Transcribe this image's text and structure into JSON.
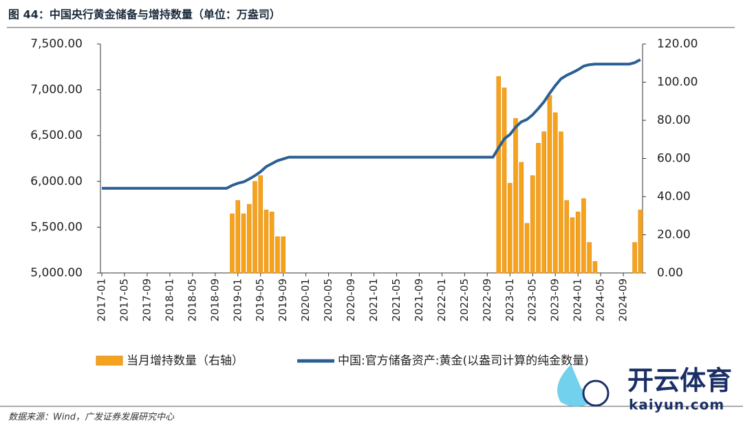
{
  "title": "图 44：中国央行黄金储备与增持数量（单位：万盎司）",
  "source": "数据来源：Wind，广发证券发展研究中心",
  "watermark": {
    "name": "开云体育",
    "site": "kaiyun.com"
  },
  "chart_data": {
    "type": "combo",
    "categories": [
      "2017-01",
      null,
      null,
      null,
      "2017-05",
      null,
      null,
      null,
      "2017-09",
      null,
      null,
      null,
      "2018-01",
      null,
      null,
      null,
      "2018-05",
      null,
      null,
      null,
      "2018-09",
      null,
      null,
      null,
      "2019-01",
      null,
      null,
      null,
      "2019-05",
      null,
      null,
      null,
      "2019-09",
      null,
      null,
      null,
      "2020-01",
      null,
      null,
      null,
      "2020-05",
      null,
      null,
      null,
      "2020-09",
      null,
      null,
      null,
      "2021-01",
      null,
      null,
      null,
      "2021-05",
      null,
      null,
      null,
      "2021-09",
      null,
      null,
      null,
      "2022-01",
      null,
      null,
      null,
      "2022-05",
      null,
      null,
      null,
      "2022-09",
      null,
      null,
      null,
      "2023-01",
      null,
      null,
      null,
      "2023-05",
      null,
      null,
      null,
      "2023-09",
      null,
      null,
      null,
      "2024-01",
      null,
      null,
      null,
      "2024-05",
      null,
      null,
      null,
      "2024-09",
      null,
      null,
      null
    ],
    "series": [
      {
        "name": "当月增持数量（右轴）",
        "type": "bar",
        "axis": "y2",
        "color": "#f5a31d",
        "values": [
          null,
          null,
          null,
          null,
          null,
          null,
          null,
          null,
          null,
          null,
          null,
          null,
          null,
          null,
          null,
          null,
          null,
          null,
          null,
          null,
          null,
          null,
          null,
          31,
          38,
          31,
          36,
          48,
          51,
          33,
          32,
          19,
          19,
          null,
          null,
          null,
          null,
          null,
          null,
          null,
          null,
          null,
          null,
          null,
          null,
          null,
          null,
          null,
          null,
          null,
          null,
          null,
          null,
          null,
          null,
          null,
          null,
          null,
          null,
          null,
          null,
          null,
          null,
          null,
          null,
          null,
          null,
          null,
          null,
          null,
          103,
          97,
          47,
          81,
          58,
          26,
          51,
          68,
          74,
          93,
          84,
          74,
          38,
          29,
          32,
          39,
          16,
          6,
          null,
          null,
          null,
          null,
          null,
          null,
          16,
          33
        ]
      },
      {
        "name": "中国:官方储备资产:黄金(以盎司计算的纯金数量)",
        "type": "line",
        "color": "#2b5f94",
        "values": [
          5924,
          5924,
          5924,
          5924,
          5924,
          5924,
          5924,
          5924,
          5924,
          5924,
          5924,
          5924,
          5924,
          5924,
          5924,
          5924,
          5924,
          5924,
          5924,
          5924,
          5924,
          5924,
          5924,
          5956,
          5979,
          5994,
          6026,
          6062,
          6105,
          6161,
          6194,
          6226,
          6245,
          6264,
          6264,
          6264,
          6264,
          6264,
          6264,
          6264,
          6264,
          6264,
          6264,
          6264,
          6264,
          6264,
          6264,
          6264,
          6264,
          6264,
          6264,
          6264,
          6264,
          6264,
          6264,
          6264,
          6264,
          6264,
          6264,
          6264,
          6264,
          6264,
          6264,
          6264,
          6264,
          6264,
          6264,
          6264,
          6264,
          6264,
          6367,
          6464,
          6512,
          6592,
          6650,
          6676,
          6727,
          6795,
          6869,
          6962,
          7046,
          7120,
          7158,
          7187,
          7219,
          7258,
          7274,
          7280,
          7280,
          7280,
          7280,
          7280,
          7280,
          7280,
          7296,
          7329
        ]
      }
    ],
    "ylim": [
      5000,
      7500
    ],
    "yticks": [
      {
        "value": 5000,
        "label": "5,000.00"
      },
      {
        "value": 5500,
        "label": "5,500.00"
      },
      {
        "value": 6000,
        "label": "6,000.00"
      },
      {
        "value": 6500,
        "label": "6,500.00"
      },
      {
        "value": 7000,
        "label": "7,000.00"
      },
      {
        "value": 7500,
        "label": "7,500.00"
      }
    ],
    "y2lim": [
      0,
      120
    ],
    "y2ticks": [
      {
        "value": 0,
        "label": "0.00"
      },
      {
        "value": 20,
        "label": "20.00"
      },
      {
        "value": 40,
        "label": "40.00"
      },
      {
        "value": 60,
        "label": "60.00"
      },
      {
        "value": 80,
        "label": "80.00"
      },
      {
        "value": 100,
        "label": "100.00"
      },
      {
        "value": 120,
        "label": "120.00"
      }
    ],
    "grid": false
  }
}
